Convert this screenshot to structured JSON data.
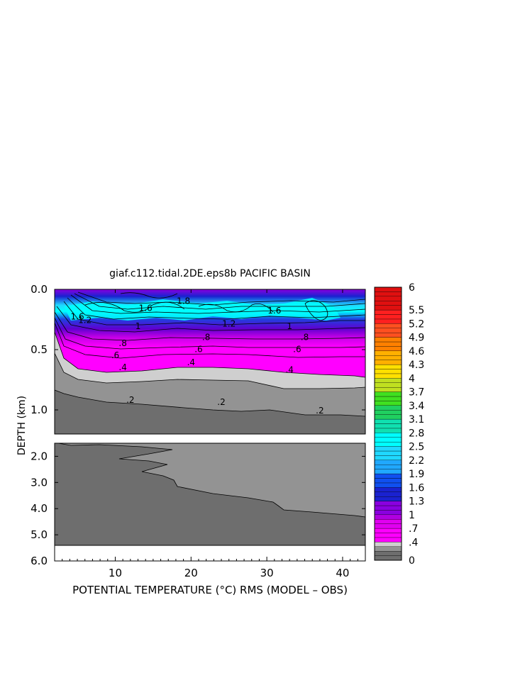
{
  "chart_data": {
    "type": "heatmap",
    "title": "giaf.c112.tidal.2DE.eps8b PACIFIC BASIN",
    "xlabel": "POTENTIAL TEMPERATURE (°C) RMS (MODEL – OBS)",
    "ylabel": "DEPTH (km)",
    "x_ticks": [
      "10",
      "20",
      "30",
      "40"
    ],
    "x_tick_values": [
      10,
      20,
      30,
      40
    ],
    "xlim": [
      2,
      43
    ],
    "upper_panel": {
      "ylim": [
        0.0,
        1.2
      ],
      "y_ticks": [
        "0.0",
        "0.5",
        "1.0"
      ],
      "y_tick_values": [
        0.0,
        0.5,
        1.0
      ]
    },
    "lower_panel": {
      "ylim": [
        1.5,
        6.0
      ],
      "y_ticks": [
        "2.0",
        "3.0",
        "4.0",
        "5.0",
        "6.0"
      ],
      "y_tick_values": [
        2.0,
        3.0,
        4.0,
        5.0,
        6.0
      ]
    },
    "contour_labels": [
      {
        "text": ".2",
        "x": 12,
        "depth": 0.94
      },
      {
        "text": ".2",
        "x": 24,
        "depth": 0.96
      },
      {
        "text": ".2",
        "x": 37,
        "depth": 1.03
      },
      {
        "text": ".4",
        "x": 20,
        "depth": 0.63
      },
      {
        "text": ".4",
        "x": 33,
        "depth": 0.69
      },
      {
        "text": ".4",
        "x": 11,
        "depth": 0.67
      },
      {
        "text": ".6",
        "x": 10,
        "depth": 0.57
      },
      {
        "text": ".6",
        "x": 21,
        "depth": 0.52
      },
      {
        "text": ".6",
        "x": 34,
        "depth": 0.52
      },
      {
        "text": ".8",
        "x": 11,
        "depth": 0.47
      },
      {
        "text": ".8",
        "x": 22,
        "depth": 0.42
      },
      {
        "text": ".8",
        "x": 35,
        "depth": 0.42
      },
      {
        "text": "1",
        "x": 13,
        "depth": 0.33
      },
      {
        "text": "1.2",
        "x": 6,
        "depth": 0.28
      },
      {
        "text": "1.6",
        "x": 5,
        "depth": 0.25
      },
      {
        "text": "1.2",
        "x": 25,
        "depth": 0.31
      },
      {
        "text": "1",
        "x": 33,
        "depth": 0.33
      },
      {
        "text": "1.6",
        "x": 14,
        "depth": 0.18
      },
      {
        "text": "1.8",
        "x": 19,
        "depth": 0.12
      },
      {
        "text": "1.6",
        "x": 31,
        "depth": 0.2
      }
    ],
    "colorbar": {
      "tick_labels": [
        "6",
        "5.5",
        "5.2",
        "4.9",
        "4.6",
        "4.3",
        "4",
        "3.7",
        "3.4",
        "3.1",
        "2.8",
        "2.5",
        "2.2",
        "1.9",
        "1.6",
        "1.3",
        "1",
        ".7",
        ".4",
        "0"
      ],
      "tick_values": [
        6,
        5.5,
        5.2,
        4.9,
        4.6,
        4.3,
        4,
        3.7,
        3.4,
        3.1,
        2.8,
        2.5,
        2.2,
        1.9,
        1.6,
        1.3,
        1,
        0.7,
        0.4,
        0
      ],
      "range": [
        0,
        6
      ]
    },
    "colors": {
      "low_dark": "#6e6e6e",
      "low_mid": "#939393",
      "low_light": "#cfcfcf",
      "magenta": "#ff00ff",
      "purple": "#8a00e0",
      "blue": "#1a22d0",
      "cyan": "#00ffff",
      "red": "#c80000"
    }
  }
}
